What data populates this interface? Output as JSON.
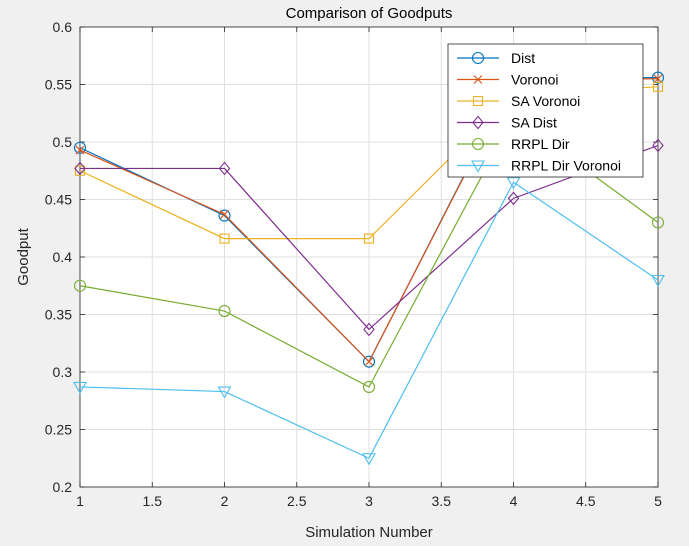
{
  "chart_data": {
    "type": "line",
    "title": "Comparison of Goodputs",
    "xlabel": "Simulation Number",
    "ylabel": "Goodput",
    "xlim": [
      1,
      5
    ],
    "ylim": [
      0.2,
      0.6
    ],
    "x_ticks": [
      "1",
      "1.5",
      "2",
      "2.5",
      "3",
      "3.5",
      "4",
      "4.5",
      "5"
    ],
    "y_ticks": [
      "0.2",
      "0.25",
      "0.3",
      "0.35",
      "0.4",
      "0.45",
      "0.5",
      "0.55",
      "0.6"
    ],
    "grid": true,
    "legend_position": "top-right",
    "x": [
      1,
      2,
      3,
      4,
      5
    ],
    "series": [
      {
        "name": "Dist",
        "color": "#0072BD",
        "marker": "circle",
        "values": [
          0.495,
          0.436,
          0.309,
          0.555,
          0.556
        ]
      },
      {
        "name": "Voronoi",
        "color": "#D95319",
        "marker": "x",
        "values": [
          0.493,
          0.437,
          0.309,
          0.554,
          0.555
        ]
      },
      {
        "name": "SA Voronoi",
        "color": "#EDB120",
        "marker": "square",
        "values": [
          0.475,
          0.416,
          0.416,
          0.541,
          0.548
        ]
      },
      {
        "name": "SA Dist",
        "color": "#7E2F8E",
        "marker": "diamond",
        "values": [
          0.477,
          0.477,
          0.337,
          0.451,
          0.497
        ]
      },
      {
        "name": "RRPL Dir",
        "color": "#77AC30",
        "marker": "circle",
        "values": [
          0.375,
          0.353,
          0.287,
          0.522,
          0.43
        ]
      },
      {
        "name": "RRPL Dir Voronoi",
        "color": "#4DBEEE",
        "marker": "triangle-down",
        "values": [
          0.287,
          0.283,
          0.225,
          0.465,
          0.38
        ]
      }
    ]
  }
}
